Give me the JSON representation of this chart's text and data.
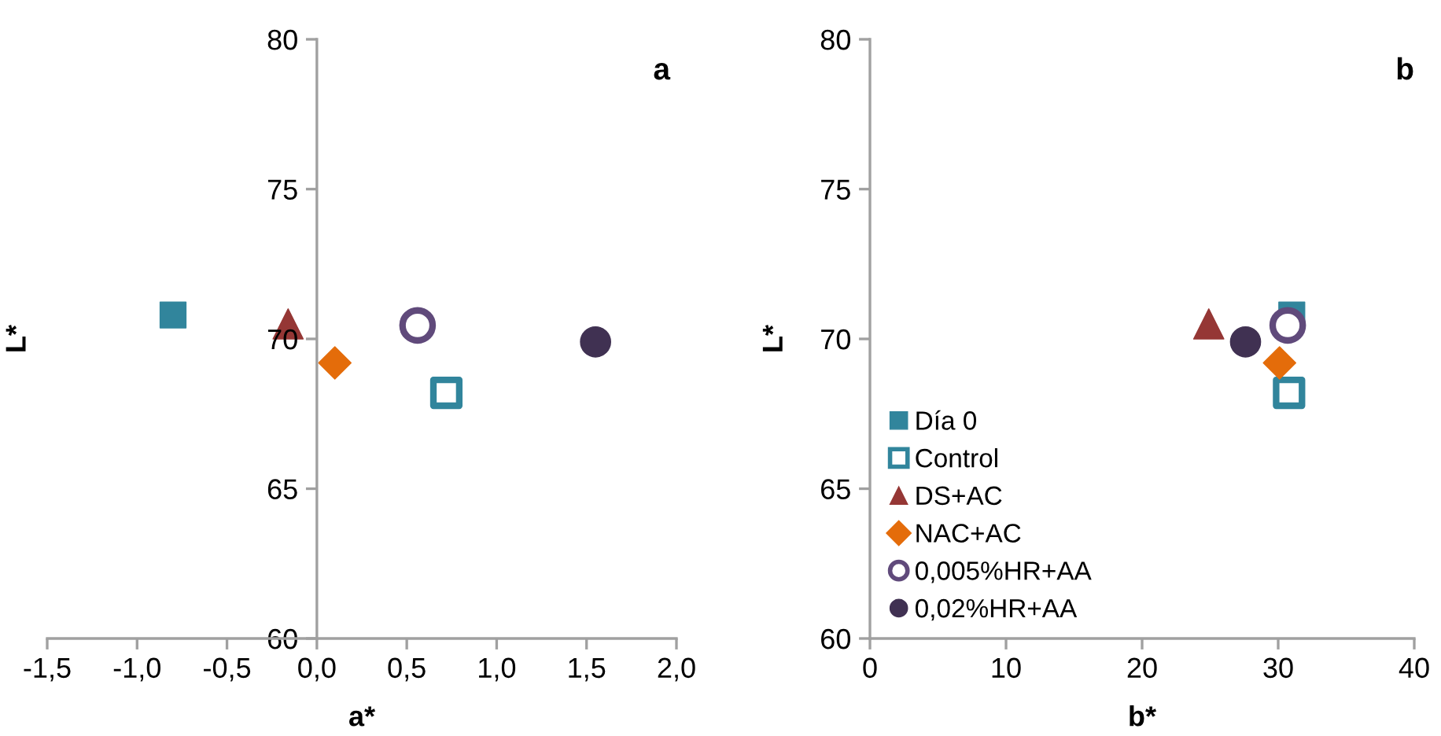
{
  "chart_data": [
    {
      "type": "scatter",
      "xlabel": "a*",
      "ylabel": "L*",
      "annotations": [
        "a"
      ],
      "xlim": [
        -1.5,
        2.0
      ],
      "ylim": [
        60,
        80
      ],
      "xticks": [
        {
          "value": -1.5,
          "label": "-1,5"
        },
        {
          "value": -1.0,
          "label": "-1,0"
        },
        {
          "value": -0.5,
          "label": "-0,5"
        },
        {
          "value": 0,
          "label": "0,0"
        },
        {
          "value": 0.5,
          "label": "0,5"
        },
        {
          "value": 1.0,
          "label": "1,0"
        },
        {
          "value": 1.5,
          "label": "1,5"
        },
        {
          "value": 2.0,
          "label": "2,0"
        }
      ],
      "yticks": [
        60,
        65,
        70,
        75,
        80
      ],
      "grid": false,
      "legend": false,
      "series": [
        {
          "color": "#31859c",
          "marker": "square",
          "x": [
            -0.8
          ],
          "values": [
            70.8
          ]
        },
        {
          "color": "#31859c",
          "marker": "square-open",
          "x": [
            0.72
          ],
          "values": [
            68.2
          ]
        },
        {
          "color": "#953735",
          "marker": "triangle",
          "x": [
            -0.16
          ],
          "values": [
            70.5
          ]
        },
        {
          "color": "#e46c0a",
          "marker": "diamond",
          "x": [
            0.1
          ],
          "values": [
            69.2
          ]
        },
        {
          "color": "#604a7b",
          "marker": "circle-open",
          "x": [
            0.56
          ],
          "values": [
            70.45
          ]
        },
        {
          "color": "#403152",
          "marker": "circle",
          "x": [
            1.55
          ],
          "values": [
            69.9
          ]
        }
      ]
    },
    {
      "type": "scatter",
      "xlabel": "b*",
      "ylabel": "L*",
      "annotations": [
        "b"
      ],
      "xlim": [
        0,
        40
      ],
      "ylim": [
        60,
        80
      ],
      "xticks": [
        0,
        10,
        20,
        30,
        40
      ],
      "yticks": [
        60,
        65,
        70,
        75,
        80
      ],
      "grid": false,
      "legend": "bottom left",
      "series": [
        {
          "name": "Día 0",
          "color": "#31859c",
          "marker": "square",
          "x": [
            31.0
          ],
          "values": [
            70.8
          ]
        },
        {
          "name": "Control",
          "color": "#31859c",
          "marker": "square-open",
          "x": [
            30.8
          ],
          "values": [
            68.2
          ]
        },
        {
          "name": "DS+AC",
          "color": "#953735",
          "marker": "triangle",
          "x": [
            24.9
          ],
          "values": [
            70.5
          ]
        },
        {
          "name": "NAC+AC",
          "color": "#e46c0a",
          "marker": "diamond",
          "x": [
            30.1
          ],
          "values": [
            69.2
          ]
        },
        {
          "name": "0,005%HR+AA",
          "color": "#604a7b",
          "marker": "circle-open",
          "x": [
            30.7
          ],
          "values": [
            70.45
          ]
        },
        {
          "name": "0,02%HR+AA",
          "color": "#403152",
          "marker": "circle",
          "x": [
            27.6
          ],
          "values": [
            69.9
          ]
        }
      ]
    }
  ]
}
